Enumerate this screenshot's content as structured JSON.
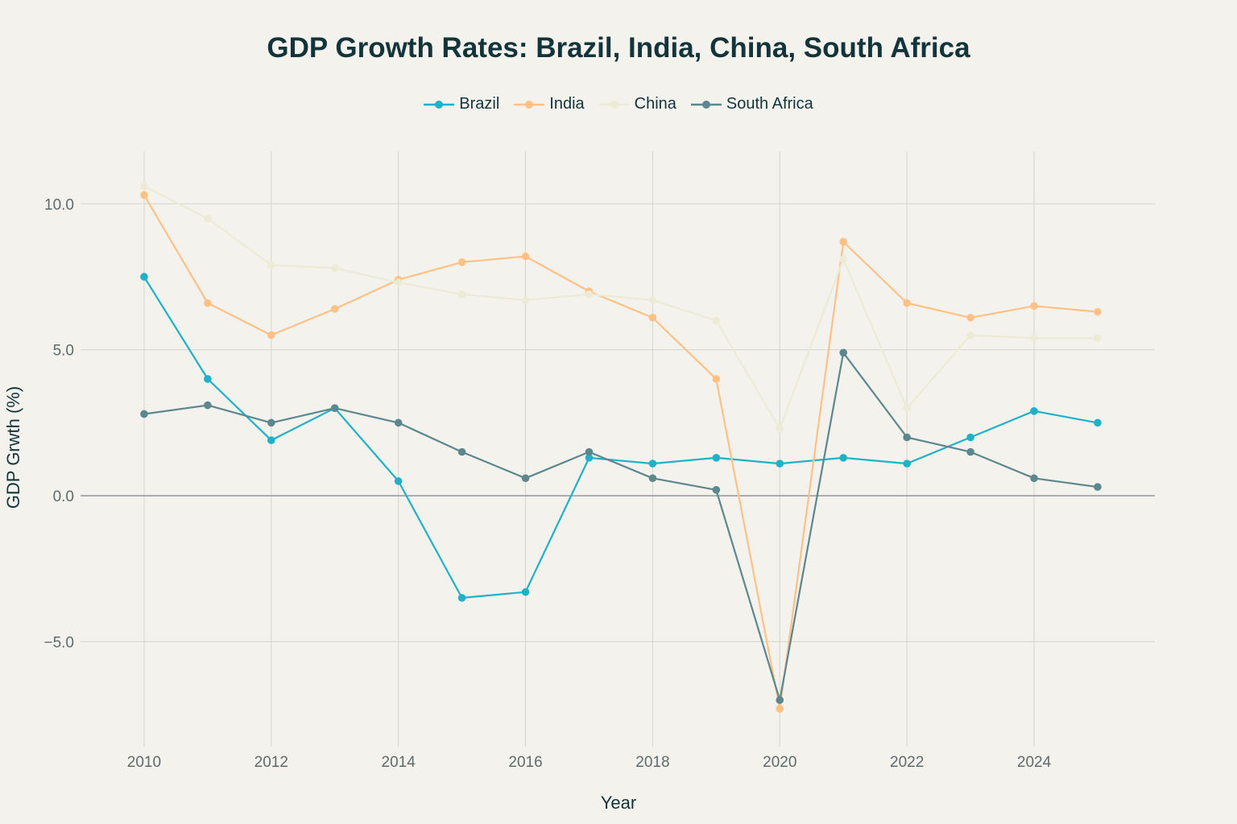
{
  "chart_data": {
    "type": "line",
    "title": "GDP Growth Rates: Brazil, India, China, South Africa",
    "xlabel": "Year",
    "ylabel": "GDP Grwth (%)",
    "x": [
      2010,
      2011,
      2012,
      2013,
      2014,
      2015,
      2016,
      2017,
      2018,
      2019,
      2020,
      2021,
      2022,
      2023,
      2024,
      2025
    ],
    "xlim": [
      2009.0,
      2025.9
    ],
    "ylim": [
      -8.6,
      11.8
    ],
    "x_ticks": [
      2010,
      2012,
      2014,
      2016,
      2018,
      2020,
      2022,
      2024
    ],
    "x_tick_labels": [
      "2010",
      "2012",
      "2014",
      "2016",
      "2018",
      "2020",
      "2022",
      "2024"
    ],
    "y_ticks": [
      -5,
      0,
      5,
      10
    ],
    "y_tick_labels": [
      "−5.0",
      "0.0",
      "5.0",
      "10.0"
    ],
    "grid": true,
    "legend_position": "top-center",
    "series": [
      {
        "name": "Brazil",
        "color": "#1fb1c8",
        "values": [
          7.5,
          4.0,
          1.9,
          3.0,
          0.5,
          -3.5,
          -3.3,
          1.3,
          1.1,
          1.3,
          1.1,
          1.3,
          1.1,
          2.0,
          2.9,
          2.5
        ]
      },
      {
        "name": "India",
        "color": "#ffc185",
        "values": [
          10.3,
          6.6,
          5.5,
          6.4,
          7.4,
          8.0,
          8.2,
          7.0,
          6.1,
          4.0,
          -7.3,
          8.7,
          6.6,
          6.1,
          6.5,
          6.3
        ]
      },
      {
        "name": "China",
        "color": "#ecebd5",
        "values": [
          10.6,
          9.5,
          7.9,
          7.8,
          7.3,
          6.9,
          6.7,
          6.9,
          6.7,
          6.0,
          2.3,
          8.1,
          3.0,
          5.5,
          5.4,
          5.4
        ]
      },
      {
        "name": "South Africa",
        "color": "#5d878f",
        "values": [
          2.8,
          3.1,
          2.5,
          3.0,
          2.5,
          1.5,
          0.6,
          1.5,
          0.6,
          0.2,
          -7.0,
          4.9,
          2.0,
          1.5,
          0.6,
          0.3
        ]
      }
    ]
  }
}
